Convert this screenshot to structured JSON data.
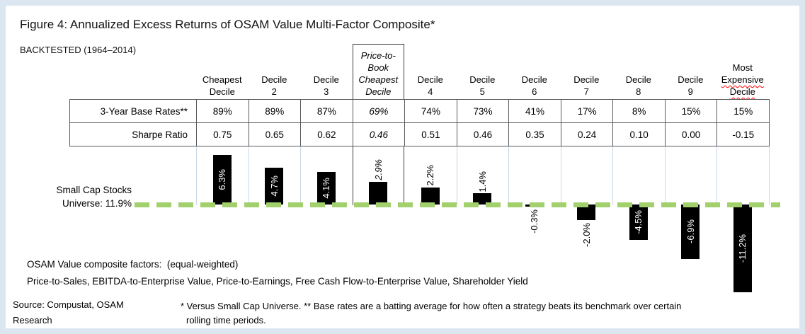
{
  "title": "Figure 4: Annualized Excess Returns of OSAM Value Multi-Factor Composite*",
  "subtitle": "BACKTESTED (1964–2014)",
  "chart_data": {
    "type": "bar",
    "title": "Figure 4: Annualized Excess Returns of OSAM Value Multi-Factor Composite*",
    "subtitle": "BACKTESTED (1964–2014)",
    "unit": "%",
    "categories": [
      "Cheapest Decile",
      "Decile 2",
      "Decile 3",
      "Price-to-Book Cheapest Decile",
      "Decile 4",
      "Decile 5",
      "Decile 6",
      "Decile 7",
      "Decile 8",
      "Decile 9",
      "Most Expensive Decile"
    ],
    "values": [
      6.3,
      4.7,
      4.1,
      2.9,
      2.2,
      1.4,
      -0.3,
      -2.0,
      -4.5,
      -6.9,
      -11.2
    ],
    "bar_labels": [
      "6.3%",
      "4.7%",
      "4.1%",
      "2.9%",
      "2.2%",
      "1.4%",
      "-0.3%",
      "-2.0%",
      "-4.5%",
      "-6.9%",
      "-11.2%"
    ],
    "label_placement": [
      "inside",
      "inside",
      "inside",
      "above",
      "above",
      "above",
      "below",
      "below",
      "inside",
      "inside",
      "inside"
    ],
    "highlight_category": "Price-to-Book Cheapest Decile",
    "baseline": {
      "label_line1": "Small Cap Stocks",
      "label_line2": "Universe: 11.9%",
      "value": 11.9
    },
    "ylim": [
      -12,
      7
    ],
    "grid": "vertical-column-separators",
    "bar_color": "#000000",
    "zero_line_color": "#a2d06c",
    "columns": [
      {
        "lines": [
          "Cheapest",
          "Decile"
        ]
      },
      {
        "lines": [
          "Decile",
          "2"
        ]
      },
      {
        "lines": [
          "Decile",
          "3"
        ]
      },
      {
        "lines": [
          "Price-to-",
          "Book",
          "Cheapest",
          "Decile"
        ],
        "italic": true,
        "boxed": true
      },
      {
        "lines": [
          "Decile",
          "4"
        ]
      },
      {
        "lines": [
          "Decile",
          "5"
        ]
      },
      {
        "lines": [
          "Decile",
          "6"
        ]
      },
      {
        "lines": [
          "Decile",
          "7"
        ]
      },
      {
        "lines": [
          "Decile",
          "8"
        ]
      },
      {
        "lines": [
          "Decile",
          "9"
        ]
      },
      {
        "lines": [
          "Most",
          "Expensive",
          "Decile"
        ],
        "squiggle_lines": [
          1,
          2
        ]
      }
    ],
    "stats_table": {
      "rows": [
        {
          "label": "3-Year Base Rates**",
          "values": [
            "89%",
            "89%",
            "87%",
            "69%",
            "74%",
            "73%",
            "41%",
            "17%",
            "8%",
            "15%",
            "15%"
          ]
        },
        {
          "label": "Sharpe Ratio",
          "values": [
            "0.75",
            "0.65",
            "0.62",
            "0.46",
            "0.51",
            "0.46",
            "0.35",
            "0.24",
            "0.10",
            "0.00",
            "-0.15"
          ]
        }
      ]
    }
  },
  "footer": {
    "factors_line1": "OSAM Value composite factors:  (equal-weighted)",
    "factors_line2": "Price-to-Sales, EBITDA-to-Enterprise Value, Price-to-Earnings, Free Cash Flow-to-Enterprise Value, Shareholder Yield",
    "source_line1": "Source: Compustat, OSAM",
    "source_line2": "Research",
    "footnote_line1": "* Versus Small Cap Universe.  ** Base rates are a batting average for how often a strategy beats its benchmark over certain",
    "footnote_line2": "rolling time periods."
  },
  "colors": {
    "frame_blue": "#dce6f1",
    "gridline_blue": "#c9d7e8",
    "table_border": "#595959",
    "highlight_box_border": "#3f3f3f",
    "zero_line_green": "#a2d06c",
    "bar_black": "#000000",
    "spellcheck_red": "#ff0000"
  }
}
